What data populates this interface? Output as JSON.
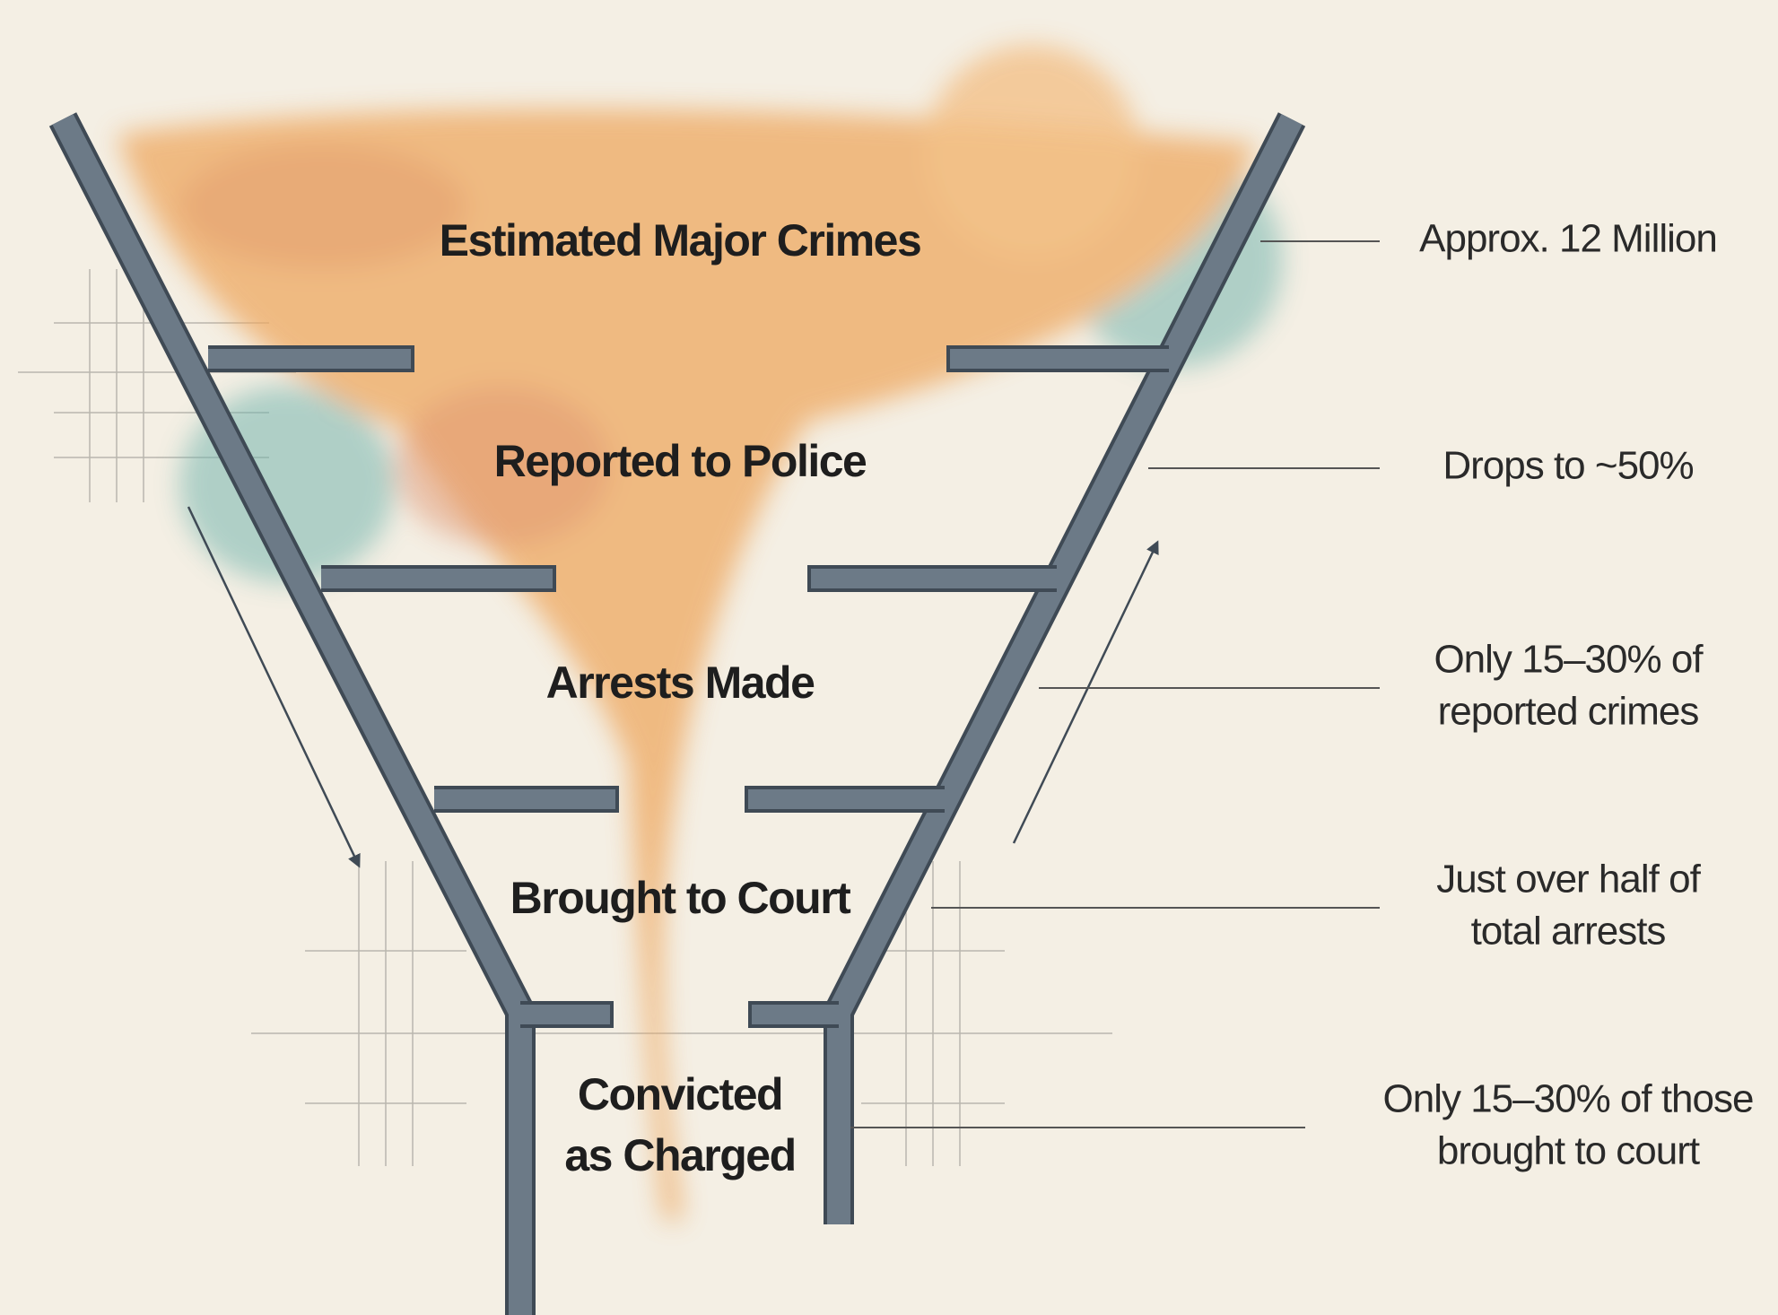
{
  "stages": [
    {
      "label": [
        "Estimated Major Crimes"
      ],
      "note": [
        "Approx. 12 Million"
      ]
    },
    {
      "label": [
        "Reported to Police"
      ],
      "note": [
        "Drops to ~50%"
      ]
    },
    {
      "label": [
        "Arrests Made"
      ],
      "note": [
        "Only 15–30% of",
        "reported crimes"
      ]
    },
    {
      "label": [
        "Brought to Court"
      ],
      "note": [
        "Just over half of",
        "total arrests"
      ]
    },
    {
      "label": [
        "Convicted",
        "as Charged"
      ],
      "note": [
        "Only 15–30% of those",
        "brought to court"
      ]
    }
  ]
}
